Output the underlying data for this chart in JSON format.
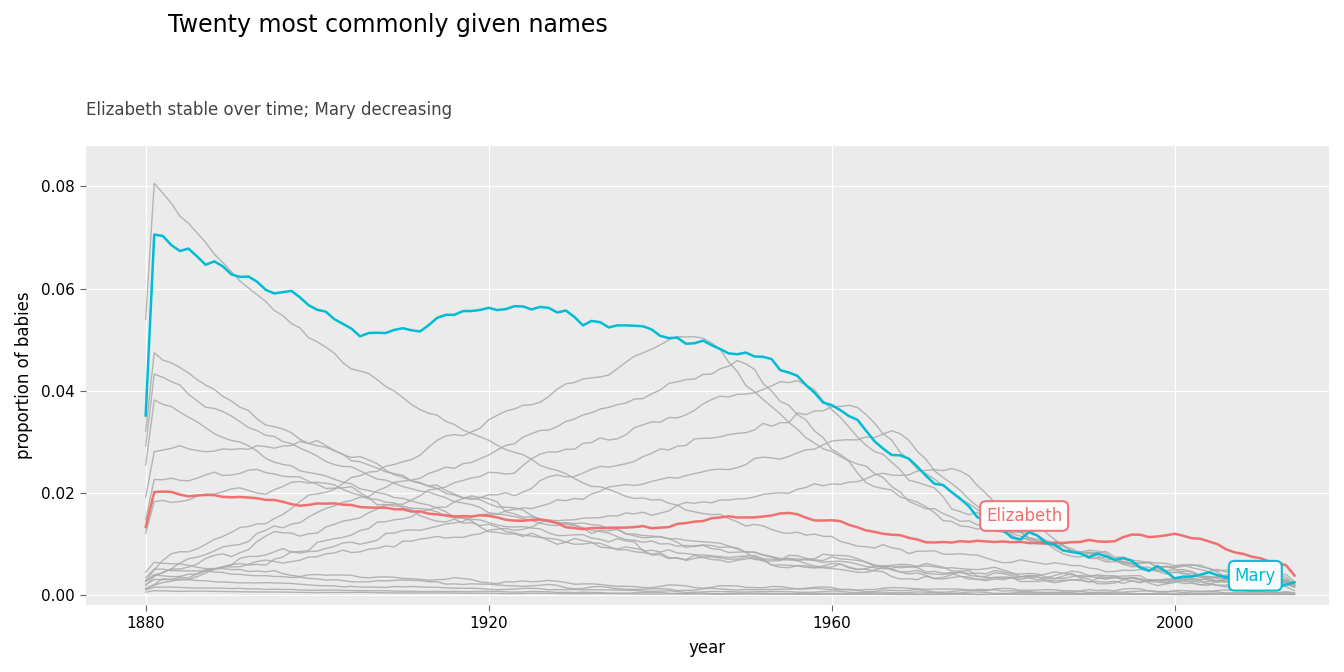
{
  "title": "Twenty most commonly given names",
  "subtitle": "Elizabeth stable over time; Mary decreasing",
  "xlabel": "year",
  "ylabel": "proportion of babies",
  "title_fontsize": 17,
  "subtitle_fontsize": 12,
  "axis_label_fontsize": 12,
  "tick_fontsize": 11,
  "bg_color": "#EBEBEB",
  "fig_bg_color": "#FFFFFF",
  "grid_color": "#FFFFFF",
  "mary_color": "#00BCD4",
  "elizabeth_color": "#F07070",
  "gray_color": "#AAAAAA",
  "gray_alpha": 0.85,
  "annotation_elizabeth_color": "#F07070",
  "annotation_mary_color": "#00BCD4",
  "ylim": [
    -0.002,
    0.088
  ],
  "xlim": [
    1873,
    2018
  ]
}
